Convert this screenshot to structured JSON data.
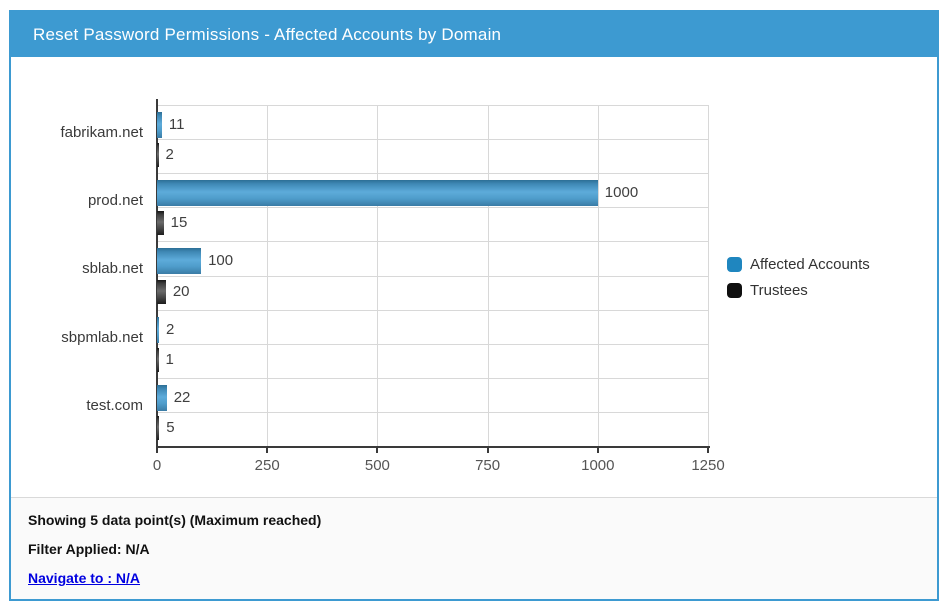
{
  "header": {
    "title": "Reset Password Permissions - Affected Accounts by Domain"
  },
  "chart_data": {
    "type": "bar",
    "orientation": "horizontal",
    "title": "Reset Password Permissions - Affected Accounts by Domain",
    "categories": [
      "fabrikam.net",
      "prod.net",
      "sblab.net",
      "sbpmlab.net",
      "test.com"
    ],
    "series": [
      {
        "name": "Affected Accounts",
        "color": "#1f86bf",
        "values": [
          11,
          1000,
          100,
          2,
          22
        ]
      },
      {
        "name": "Trustees",
        "color": "#0f0f0f",
        "values": [
          2,
          15,
          20,
          1,
          5
        ]
      }
    ],
    "xlabel": "",
    "ylabel": "",
    "xlim": [
      0,
      1250
    ],
    "x_ticks": [
      0,
      250,
      500,
      750,
      1000,
      1250
    ],
    "grid": true,
    "legend_position": "right",
    "data_labels": true
  },
  "footer": {
    "showing": "Showing 5 data point(s) (Maximum reached)",
    "filter": "Filter Applied: N/A",
    "navigate": "Navigate to : N/A"
  },
  "colors": {
    "accent": "#3d9ad1",
    "panel_border": "#3d9ad1",
    "header_text": "#ffffff",
    "grid": "#d8d8d8",
    "axis": "#3a3a3a",
    "label_text": "#3f3f3f",
    "link": "#0000e0",
    "footer_bg": "#fafafa"
  }
}
